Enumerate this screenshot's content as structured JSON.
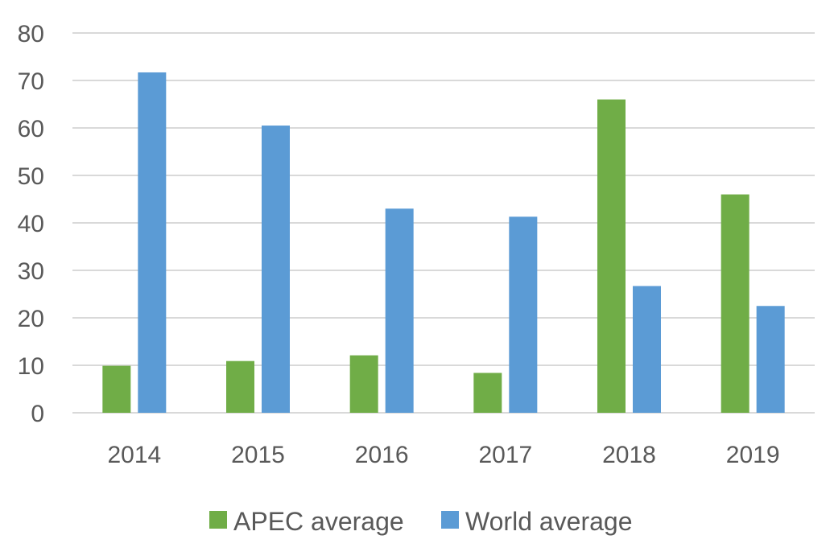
{
  "chart_data": {
    "type": "bar",
    "title": "",
    "xlabel": "",
    "ylabel": "",
    "categories": [
      "2014",
      "2015",
      "2016",
      "2017",
      "2018",
      "2019"
    ],
    "series": [
      {
        "name": "APEC average",
        "color": "#70AD47",
        "values": [
          9.9,
          10.9,
          12.1,
          8.4,
          66.0,
          46.0
        ]
      },
      {
        "name": "World average",
        "color": "#5B9BD5",
        "values": [
          71.7,
          60.5,
          43.0,
          41.3,
          26.7,
          22.5
        ]
      }
    ],
    "ylim": [
      0,
      80
    ],
    "yticks": [
      0,
      10,
      20,
      30,
      40,
      50,
      60,
      70,
      80
    ],
    "grid": true,
    "legend": "bottom"
  }
}
